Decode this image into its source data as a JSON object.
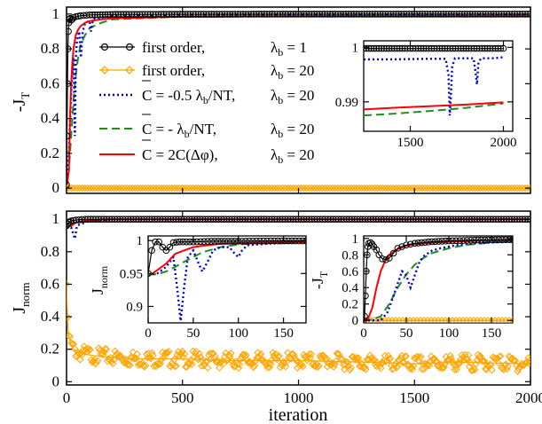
{
  "figure": {
    "top_panel": {
      "ylabel": "-J",
      "ylabel_sub": "T",
      "xlim": [
        0,
        2000
      ],
      "ylim": [
        -0.03,
        1.04
      ],
      "yticks": [
        "0",
        "0.2",
        "0.4",
        "0.6",
        "0.8",
        "1"
      ],
      "legend_placement": "center",
      "legend": [
        {
          "label": "first order,",
          "lambda_text": "λ",
          "lambda_sub": "b",
          "lambda_val": " = 1"
        },
        {
          "label": "first order,",
          "lambda_text": "λ",
          "lambda_sub": "b",
          "lambda_val": " = 20"
        },
        {
          "label": "C = -0.5 λ",
          "label_sub": "b",
          "label_tail": "/NT,",
          "lambda_text": "λ",
          "lambda_sub": "b",
          "lambda_val": " = 20"
        },
        {
          "label": "C = - λ",
          "label_sub": "b",
          "label_tail": "/NT,",
          "lambda_text": "λ",
          "lambda_sub": "b",
          "lambda_val": " = 20"
        },
        {
          "label": "C = 2C(Δφ),",
          "lambda_text": "λ",
          "lambda_sub": "b",
          "lambda_val": " = 20"
        }
      ],
      "inset": {
        "xlim": [
          1250,
          2050
        ],
        "ylim": [
          0.9846,
          1.0012
        ],
        "xticks": [
          "1500",
          "2000"
        ],
        "yticks": [
          "0.99",
          "1"
        ]
      }
    },
    "bottom_panel": {
      "ylabel": "J",
      "ylabel_sub": "norm",
      "xlabel": "iteration",
      "xlim": [
        0,
        2000
      ],
      "ylim": [
        -0.02,
        1.05
      ],
      "xticks": [
        "0",
        "500",
        "1000",
        "1500",
        "2000"
      ],
      "yticks": [
        "0",
        "0.2",
        "0.4",
        "0.6",
        "0.8",
        "1"
      ],
      "inset_left": {
        "ylabel": "J",
        "ylabel_sub": "norm",
        "xlim": [
          0,
          175
        ],
        "ylim": [
          0.875,
          1.007
        ],
        "xticks": [
          "0",
          "50",
          "100",
          "150"
        ],
        "yticks": [
          "0.9",
          "0.95",
          "1"
        ]
      },
      "inset_right": {
        "ylabel": "-J",
        "ylabel_sub": "T",
        "xlim": [
          0,
          175
        ],
        "ylim": [
          -0.03,
          1.03
        ],
        "xticks": [
          "0",
          "50",
          "100",
          "150"
        ],
        "yticks": [
          "0",
          "0.2",
          "0.4",
          "0.6",
          "0.8",
          "1"
        ]
      }
    }
  },
  "chart_data": [
    {
      "type": "line",
      "panel": "top",
      "ylabel": "-J_T",
      "xlim": [
        0,
        2000
      ],
      "ylim": [
        -0.03,
        1.04
      ],
      "series": [
        {
          "name": "first order, λ_b = 1",
          "color": "#000000",
          "marker": "circle",
          "x": [
            0,
            2,
            4,
            6,
            8,
            10,
            12,
            15,
            20,
            25,
            30,
            40,
            60,
            100,
            200,
            500,
            1000,
            1500,
            2000
          ],
          "y": [
            0.02,
            0.3,
            0.6,
            0.8,
            0.9,
            0.95,
            0.97,
            0.975,
            0.965,
            0.97,
            0.98,
            0.985,
            0.99,
            0.995,
            0.998,
            0.999,
            0.9995,
            0.9998,
            0.9998
          ]
        },
        {
          "name": "first order, λ_b = 20",
          "color": "#FFA500",
          "marker": "diamond",
          "x": [
            0,
            250,
            500,
            750,
            1000,
            1250,
            1500,
            1750,
            2000
          ],
          "y": [
            0.0,
            0.0,
            0.0,
            0.0,
            0.0,
            0.0,
            0.0,
            0.0,
            0.0
          ]
        },
        {
          "name": "C = -0.5 λ_b/NT, λ_b = 20",
          "color": "#0000CD",
          "dash": "dotted",
          "x": [
            0,
            10,
            20,
            30,
            36,
            40,
            45,
            55,
            62,
            70,
            80,
            100,
            105,
            115,
            150,
            200,
            500,
            1000,
            1500,
            1690,
            1710,
            1720,
            1730,
            1750,
            1800,
            1850,
            1860,
            1870,
            1900,
            2000
          ],
          "y": [
            0.0,
            0.2,
            0.55,
            0.75,
            0.3,
            0.75,
            0.85,
            0.9,
            0.75,
            0.9,
            0.95,
            0.96,
            0.9,
            0.97,
            0.98,
            0.99,
            0.997,
            0.998,
            0.998,
            0.998,
            0.993,
            0.987,
            0.994,
            0.998,
            0.998,
            0.998,
            0.993,
            0.998,
            0.998,
            0.998
          ]
        },
        {
          "name": "C = -λ_b/NT, λ_b = 20",
          "color": "#228B22",
          "dash": "dashed",
          "x": [
            0,
            10,
            20,
            30,
            40,
            50,
            60,
            80,
            100,
            150,
            200,
            500,
            1000,
            1250,
            1500,
            2000
          ],
          "y": [
            0.0,
            0.1,
            0.3,
            0.5,
            0.65,
            0.75,
            0.82,
            0.88,
            0.92,
            0.95,
            0.97,
            0.985,
            0.987,
            0.9875,
            0.9882,
            0.9897
          ]
        },
        {
          "name": "C = 2C(Δφ), λ_b = 20",
          "color": "#FF0000",
          "dash": "solid",
          "x": [
            0,
            10,
            15,
            20,
            25,
            30,
            40,
            50,
            60,
            80,
            100,
            150,
            200,
            500,
            1000,
            1250,
            1500,
            2000
          ],
          "y": [
            0.0,
            0.1,
            0.4,
            0.6,
            0.72,
            0.8,
            0.88,
            0.91,
            0.93,
            0.95,
            0.96,
            0.97,
            0.975,
            0.985,
            0.988,
            0.9885,
            0.9889,
            0.9899
          ]
        }
      ]
    },
    {
      "type": "line",
      "panel": "bottom",
      "ylabel": "J_norm",
      "xlabel": "iteration",
      "xlim": [
        0,
        2000
      ],
      "ylim": [
        -0.02,
        1.05
      ],
      "series": [
        {
          "name": "first order, λ_b = 1",
          "color": "#000000",
          "marker": "circle",
          "x": [
            0,
            5,
            10,
            20,
            40,
            80,
            150,
            300,
            1000,
            2000
          ],
          "y": [
            0.96,
            0.97,
            0.98,
            0.99,
            0.995,
            1.0,
            1.0,
            1.0,
            1.0,
            1.0
          ]
        },
        {
          "name": "first order, λ_b = 20 (noisy)",
          "color": "#FFA500",
          "marker": "diamond",
          "x": [
            0,
            5,
            10,
            20,
            30,
            50,
            80,
            120,
            200,
            300,
            500,
            700,
            1000,
            1300,
            1500,
            1700,
            2000
          ],
          "y": [
            0.6,
            0.35,
            0.28,
            0.22,
            0.2,
            0.18,
            0.17,
            0.16,
            0.15,
            0.14,
            0.14,
            0.13,
            0.13,
            0.12,
            0.11,
            0.12,
            0.11
          ]
        },
        {
          "name": "C = -0.5 λ_b/NT, λ_b = 20",
          "color": "#0000CD",
          "dash": "dotted",
          "x": [
            0,
            20,
            36,
            45,
            60,
            100,
            200,
            2000
          ],
          "y": [
            0.95,
            0.95,
            0.88,
            0.96,
            0.97,
            0.99,
            1.0,
            1.0
          ]
        },
        {
          "name": "C = -λ_b/NT, λ_b = 20",
          "color": "#228B22",
          "dash": "dashed",
          "x": [
            0,
            20,
            50,
            100,
            200,
            2000
          ],
          "y": [
            0.95,
            0.96,
            0.98,
            0.99,
            1.0,
            1.0
          ]
        },
        {
          "name": "C = 2C(Δφ), λ_b = 20",
          "color": "#FF0000",
          "dash": "solid",
          "x": [
            0,
            20,
            40,
            80,
            150,
            2000
          ],
          "y": [
            0.95,
            0.96,
            0.98,
            0.99,
            1.0,
            1.0
          ]
        }
      ]
    },
    {
      "type": "line",
      "panel": "bottom-inset-left",
      "ylabel": "J_norm",
      "xlim": [
        0,
        175
      ],
      "ylim": [
        0.875,
        1.007
      ],
      "series": [
        {
          "name": "first order, λ_b = 1",
          "color": "#000000",
          "marker": "circle",
          "x": [
            0,
            4,
            8,
            12,
            16,
            20,
            24,
            28,
            35,
            50,
            70,
            100,
            140,
            175
          ],
          "y": [
            0.95,
            0.985,
            0.998,
            0.998,
            0.99,
            0.985,
            0.99,
            0.997,
            0.998,
            0.998,
            0.999,
            0.999,
            0.9995,
            0.9995
          ]
        },
        {
          "name": "C = -0.5 λ_b/NT, λ_b = 20",
          "color": "#0000CD",
          "dash": "dotted",
          "x": [
            0,
            10,
            20,
            28,
            32,
            36,
            40,
            44,
            50,
            56,
            60,
            66,
            72,
            80,
            90,
            96,
            100,
            104,
            110,
            130,
            160,
            175
          ],
          "y": [
            0.948,
            0.95,
            0.96,
            0.975,
            0.93,
            0.878,
            0.93,
            0.975,
            0.985,
            0.965,
            0.953,
            0.968,
            0.985,
            0.99,
            0.99,
            0.98,
            0.975,
            0.985,
            0.993,
            0.995,
            0.997,
            0.998
          ]
        },
        {
          "name": "C = -λ_b/NT, λ_b = 20",
          "color": "#228B22",
          "dash": "dashed",
          "x": [
            0,
            10,
            20,
            30,
            40,
            50,
            60,
            80,
            100,
            120,
            150,
            175
          ],
          "y": [
            0.948,
            0.949,
            0.953,
            0.96,
            0.968,
            0.975,
            0.982,
            0.99,
            0.994,
            0.996,
            0.997,
            0.998
          ]
        },
        {
          "name": "C = 2C(Δφ), λ_b = 20",
          "color": "#FF0000",
          "dash": "solid",
          "x": [
            0,
            5,
            10,
            20,
            30,
            40,
            50,
            60,
            80,
            100,
            130,
            175
          ],
          "y": [
            0.948,
            0.95,
            0.955,
            0.965,
            0.98,
            0.985,
            0.99,
            0.992,
            0.995,
            0.996,
            0.997,
            0.998
          ]
        }
      ]
    },
    {
      "type": "line",
      "panel": "bottom-inset-right",
      "ylabel": "-J_T",
      "xlim": [
        0,
        175
      ],
      "ylim": [
        -0.03,
        1.03
      ],
      "series": [
        {
          "name": "first order, λ_b = 1",
          "color": "#000000",
          "marker": "circle",
          "x": [
            0,
            1,
            2,
            3,
            4,
            5,
            6,
            8,
            10,
            12,
            15,
            18,
            22,
            26,
            30,
            35,
            40,
            50,
            60,
            80,
            100,
            130,
            175
          ],
          "y": [
            0.0,
            0.05,
            0.3,
            0.6,
            0.8,
            0.9,
            0.94,
            0.95,
            0.93,
            0.9,
            0.86,
            0.8,
            0.75,
            0.74,
            0.76,
            0.82,
            0.88,
            0.92,
            0.94,
            0.96,
            0.97,
            0.98,
            0.985
          ]
        },
        {
          "name": "first order, λ_b = 20",
          "color": "#FFA500",
          "marker": "diamond",
          "x": [
            0,
            25,
            50,
            75,
            100,
            125,
            150,
            175
          ],
          "y": [
            0.0,
            0.0,
            0.0,
            0.0,
            0.0,
            0.0,
            0.0,
            0.0
          ]
        },
        {
          "name": "C = -0.5 λ_b/NT, λ_b = 20",
          "color": "#0000CD",
          "dash": "dotted",
          "x": [
            0,
            20,
            28,
            35,
            40,
            45,
            50,
            55,
            60,
            65,
            70,
            80,
            90,
            100,
            110,
            130,
            150,
            175
          ],
          "y": [
            0.0,
            0.0,
            0.1,
            0.3,
            0.45,
            0.6,
            0.55,
            0.4,
            0.55,
            0.7,
            0.78,
            0.85,
            0.88,
            0.9,
            0.92,
            0.94,
            0.95,
            0.96
          ]
        },
        {
          "name": "C = -λ_b/NT, λ_b = 20",
          "color": "#228B22",
          "dash": "dashed",
          "x": [
            0,
            10,
            20,
            30,
            40,
            50,
            60,
            70,
            80,
            100,
            120,
            150,
            175
          ],
          "y": [
            0.0,
            0.01,
            0.05,
            0.2,
            0.4,
            0.56,
            0.68,
            0.76,
            0.82,
            0.88,
            0.92,
            0.95,
            0.97
          ]
        },
        {
          "name": "C = 2C(Δφ), λ_b = 20",
          "color": "#FF0000",
          "dash": "solid",
          "x": [
            0,
            5,
            10,
            15,
            20,
            25,
            30,
            40,
            50,
            60,
            80,
            100,
            130,
            175
          ],
          "y": [
            0.0,
            0.02,
            0.15,
            0.4,
            0.6,
            0.72,
            0.8,
            0.87,
            0.91,
            0.93,
            0.95,
            0.96,
            0.97,
            0.98
          ]
        }
      ]
    },
    {
      "type": "line",
      "panel": "top-inset",
      "xlim": [
        1250,
        2050
      ],
      "ylim": [
        0.9846,
        1.0012
      ],
      "series": [
        {
          "name": "first order, λ_b = 1",
          "color": "#000000",
          "marker": "circle",
          "x": [
            1250,
            1400,
            1600,
            1800,
            2000
          ],
          "y": [
            0.9998,
            0.9998,
            0.9998,
            0.9998,
            0.9998
          ]
        },
        {
          "name": "C = -0.5 λ_b/NT, λ_b = 20",
          "color": "#0000CD",
          "dash": "dotted",
          "x": [
            1250,
            1400,
            1600,
            1690,
            1705,
            1712,
            1718,
            1725,
            1740,
            1800,
            1840,
            1852,
            1858,
            1866,
            1880,
            1950,
            2000
          ],
          "y": [
            0.9978,
            0.9978,
            0.9979,
            0.9979,
            0.995,
            0.9875,
            0.991,
            0.9965,
            0.998,
            0.998,
            0.998,
            0.995,
            0.9932,
            0.9972,
            0.998,
            0.998,
            0.9982
          ]
        },
        {
          "name": "C = -λ_b/NT, λ_b = 20",
          "color": "#228B22",
          "dash": "dashed",
          "x": [
            1250,
            1400,
            1600,
            1800,
            2000
          ],
          "y": [
            0.9875,
            0.9878,
            0.9883,
            0.9889,
            0.9897
          ]
        },
        {
          "name": "C = 2C(Δφ), λ_b = 20",
          "color": "#FF0000",
          "dash": "solid",
          "x": [
            1250,
            1400,
            1600,
            1800,
            2000
          ],
          "y": [
            0.9886,
            0.9889,
            0.9892,
            0.9895,
            0.9899
          ]
        }
      ]
    }
  ]
}
